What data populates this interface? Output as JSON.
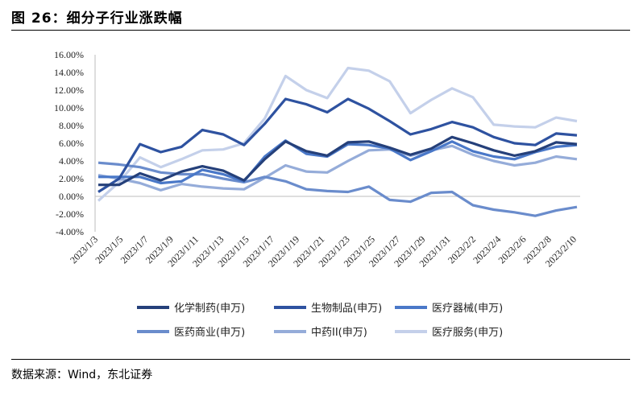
{
  "header": {
    "title": "图 26：细分子行业涨跌幅"
  },
  "footer": {
    "source": "数据来源：Wind，东北证券"
  },
  "chart_data": {
    "type": "line",
    "title": "",
    "xlabel": "",
    "ylabel": "",
    "ylim": [
      -0.04,
      0.16
    ],
    "yticks": [
      -0.04,
      -0.02,
      0.0,
      0.02,
      0.04,
      0.06,
      0.08,
      0.1,
      0.12,
      0.14,
      0.16
    ],
    "ytick_labels": [
      "-4.00%",
      "-2.00%",
      "0.00%",
      "2.00%",
      "4.00%",
      "6.00%",
      "8.00%",
      "10.00%",
      "12.00%",
      "14.00%",
      "16.00%"
    ],
    "x": [
      "2023/1/3",
      "2023/1/4",
      "2023/1/5",
      "2023/1/6",
      "2023/1/9",
      "2023/1/10",
      "2023/1/11",
      "2023/1/12",
      "2023/1/13",
      "2023/1/16",
      "2023/1/17",
      "2023/1/18",
      "2023/1/19",
      "2023/1/20",
      "2023/1/30",
      "2023/1/31",
      "2023/2/1",
      "2023/2/2",
      "2023/2/3",
      "2023/2/6",
      "2023/2/7",
      "2023/2/8",
      "2023/2/9",
      "2023/2/10"
    ],
    "xtick_labels": [
      "2023/1/3",
      "2023/1/5",
      "2023/1/7",
      "2023/1/9",
      "2023/1/11",
      "2023/1/13",
      "2023/1/15",
      "2023/1/17",
      "2023/1/19",
      "2023/1/21",
      "2023/1/23",
      "2023/1/25",
      "2023/1/27",
      "2023/1/29",
      "2023/1/31",
      "2023/2/2",
      "2023/2/4",
      "2023/2/6",
      "2023/2/8",
      "2023/2/10"
    ],
    "legend_position": "bottom",
    "series": [
      {
        "name": "化学制药(申万)",
        "color": "#25407a",
        "values": [
          0.013,
          0.013,
          0.026,
          0.018,
          0.028,
          0.034,
          0.029,
          0.018,
          0.042,
          0.062,
          0.051,
          0.046,
          0.061,
          0.062,
          0.055,
          0.047,
          0.054,
          0.067,
          0.06,
          0.052,
          0.046,
          0.051,
          0.061,
          0.059
        ]
      },
      {
        "name": "生物制品(申万)",
        "color": "#2e52a0",
        "values": [
          0.005,
          0.02,
          0.059,
          0.05,
          0.056,
          0.075,
          0.07,
          0.058,
          0.082,
          0.11,
          0.104,
          0.095,
          0.11,
          0.099,
          0.085,
          0.07,
          0.076,
          0.084,
          0.078,
          0.067,
          0.06,
          0.058,
          0.071,
          0.069
        ]
      },
      {
        "name": "医疗器械(申万)",
        "color": "#4a78c8",
        "values": [
          0.022,
          0.022,
          0.022,
          0.015,
          0.017,
          0.03,
          0.025,
          0.017,
          0.045,
          0.063,
          0.048,
          0.045,
          0.059,
          0.058,
          0.054,
          0.041,
          0.051,
          0.062,
          0.051,
          0.045,
          0.042,
          0.05,
          0.056,
          0.058
        ]
      },
      {
        "name": "医药商业(申万)",
        "color": "#6a8ccc",
        "values": [
          0.038,
          0.036,
          0.033,
          0.027,
          0.025,
          0.025,
          0.02,
          0.016,
          0.022,
          0.017,
          0.008,
          0.006,
          0.005,
          0.011,
          -0.004,
          -0.006,
          0.004,
          0.005,
          -0.01,
          -0.015,
          -0.018,
          -0.022,
          -0.016,
          -0.012
        ]
      },
      {
        "name": "中药II(申万)",
        "color": "#95acd9",
        "values": [
          0.024,
          0.02,
          0.015,
          0.007,
          0.014,
          0.011,
          0.009,
          0.008,
          0.021,
          0.035,
          0.028,
          0.027,
          0.04,
          0.052,
          0.053,
          0.046,
          0.052,
          0.057,
          0.047,
          0.04,
          0.035,
          0.038,
          0.045,
          0.042
        ]
      },
      {
        "name": "医疗服务(申万)",
        "color": "#c4d0ea",
        "values": [
          -0.005,
          0.016,
          0.044,
          0.033,
          0.042,
          0.052,
          0.053,
          0.06,
          0.088,
          0.136,
          0.12,
          0.111,
          0.145,
          0.142,
          0.13,
          0.094,
          0.109,
          0.122,
          0.112,
          0.081,
          0.079,
          0.078,
          0.089,
          0.085
        ]
      }
    ]
  }
}
